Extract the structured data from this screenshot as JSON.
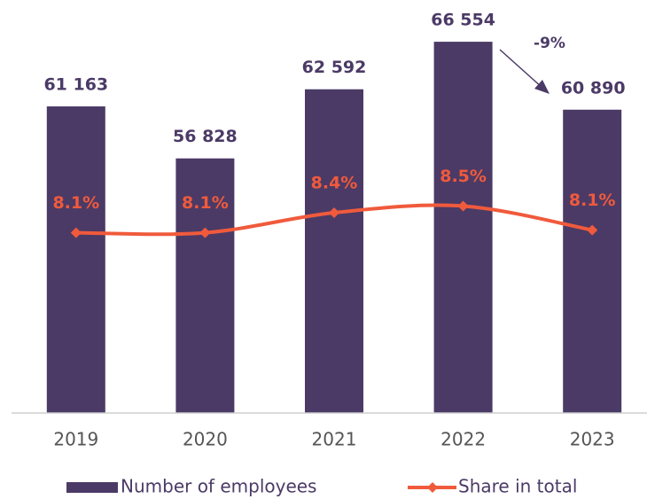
{
  "chart_data": {
    "type": "bar",
    "categories": [
      "2019",
      "2020",
      "2021",
      "2022",
      "2023"
    ],
    "series": [
      {
        "name": "Number of employees",
        "type": "bar",
        "color": "#4b3a66",
        "values": [
          61163,
          56828,
          62592,
          66554,
          60890
        ],
        "value_labels": [
          "61 163",
          "56 828",
          "62 592",
          "66 554",
          "60 890"
        ]
      },
      {
        "name": "Share in total",
        "type": "line",
        "axis": "y2",
        "color": "#f05a3c",
        "values": [
          8.1,
          8.1,
          8.4,
          8.5,
          8.14
        ],
        "value_labels": [
          "8.1%",
          "8.1%",
          "8.4%",
          "8.5%",
          "8.1%"
        ]
      }
    ],
    "ylim": [
      35600,
      69000
    ],
    "y2lim": [
      5.4,
      11.4
    ],
    "annotation": "-9%",
    "legend": "bottom"
  }
}
